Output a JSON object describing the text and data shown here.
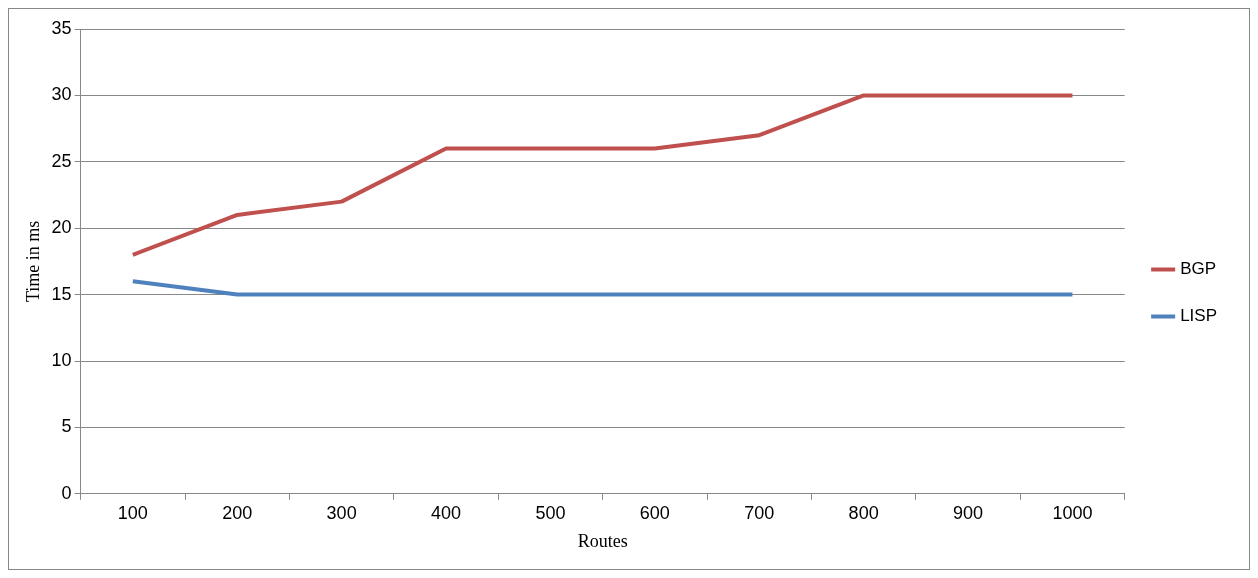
{
  "chart_data": {
    "type": "line",
    "xlabel": "Routes",
    "ylabel": "Time in ms",
    "categories": [
      "100",
      "200",
      "300",
      "400",
      "500",
      "600",
      "700",
      "800",
      "900",
      "1000"
    ],
    "series": [
      {
        "name": "BGP",
        "color": "#c0504d",
        "values": [
          18,
          21,
          22,
          26,
          26,
          26,
          27,
          30,
          30,
          30
        ]
      },
      {
        "name": "LISP",
        "color": "#4f81bd",
        "values": [
          16,
          15,
          15,
          15,
          15,
          15,
          15,
          15,
          15,
          15
        ]
      }
    ],
    "ylim": [
      0,
      35
    ],
    "yticks": [
      0,
      5,
      10,
      15,
      20,
      25,
      30,
      35
    ],
    "grid": "y",
    "legend": "right",
    "marker": "none",
    "line_style": "solid"
  }
}
